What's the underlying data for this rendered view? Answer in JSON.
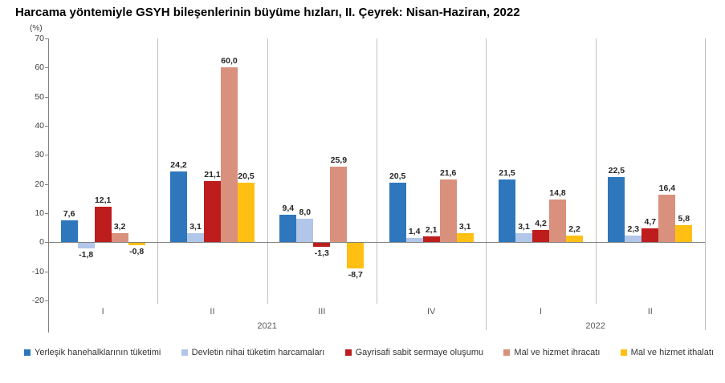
{
  "title": "Harcama yöntemiyle GSYH bileşenlerinin büyüme hızları, II. Çeyrek: Nisan-Haziran, 2022",
  "y_axis_unit": "(%)",
  "chart_data": {
    "type": "bar",
    "categories": [
      "I",
      "II",
      "III",
      "IV",
      "I",
      "II"
    ],
    "year_groups": [
      {
        "label": "2021",
        "span": 4
      },
      {
        "label": "2022",
        "span": 2
      }
    ],
    "series": [
      {
        "name": "Yerleşik hanehalklarının tüketimi",
        "color": "#2E77BC",
        "values": [
          7.6,
          24.2,
          9.4,
          20.5,
          21.5,
          22.5
        ],
        "labels": [
          "7,6",
          "24,2",
          "9,4",
          "20,5",
          "21,5",
          "22,5"
        ]
      },
      {
        "name": "Devletin nihai tüketim harcamaları",
        "color": "#B1C6E8",
        "values": [
          -1.8,
          3.1,
          8.0,
          1.4,
          3.1,
          2.3
        ],
        "labels": [
          "-1,8",
          "3,1",
          "8,0",
          "1,4",
          "3,1",
          "2,3"
        ]
      },
      {
        "name": "Gayrisafi sabit sermaye oluşumu",
        "color": "#BE1D1D",
        "values": [
          12.1,
          21.1,
          -1.3,
          2.1,
          4.2,
          4.7
        ],
        "labels": [
          "12,1",
          "21,1",
          "-1,3",
          "2,1",
          "4,2",
          "4,7"
        ]
      },
      {
        "name": "Mal ve hizmet ihracatı",
        "color": "#D9907C",
        "values": [
          3.2,
          60.0,
          25.9,
          21.6,
          14.8,
          16.4
        ],
        "labels": [
          "3,2",
          "60,0",
          "25,9",
          "21,6",
          "14,8",
          "16,4"
        ]
      },
      {
        "name": "Mal ve hizmet ithalatı",
        "color": "#FFC013",
        "values": [
          -0.8,
          20.5,
          -8.7,
          3.1,
          2.2,
          5.8
        ],
        "labels": [
          "-0,8",
          "20,5",
          "-8,7",
          "3,1",
          "2,2",
          "5,8"
        ]
      }
    ],
    "ylim": [
      -20,
      70
    ],
    "ytick_step": 10,
    "yticks": [
      70,
      60,
      50,
      40,
      30,
      20,
      10,
      0,
      -10,
      -20
    ],
    "grid": false,
    "legend_position": "bottom"
  }
}
